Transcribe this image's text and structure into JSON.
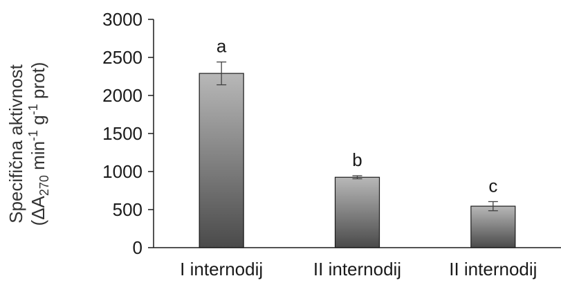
{
  "chart_data": {
    "type": "bar",
    "categories": [
      "I internodij",
      "II internodij",
      "II internodij"
    ],
    "values": [
      2290,
      925,
      545
    ],
    "errors": [
      150,
      20,
      60
    ],
    "data_labels": [
      "a",
      "b",
      "c"
    ],
    "title": "",
    "xlabel": "",
    "ylabel": {
      "line1": "Specifična aktivnost",
      "line2_open": "(ΔA",
      "line2_sub": "270",
      "line2_mid": " min",
      "line2_sup1": "-1",
      "line2_mid2": " g",
      "line2_sup2": "-1",
      "line2_close": " prot)"
    },
    "ylim": [
      0,
      3000
    ],
    "yticks": [
      "0",
      "500",
      "1000",
      "1500",
      "2000",
      "2500",
      "3000"
    ],
    "ytick_values": [
      0,
      500,
      1000,
      1500,
      2000,
      2500,
      3000
    ],
    "grid": false,
    "legend": "none",
    "colors": {
      "bar_light": "#b8b8b8",
      "bar_dark": "#4a4a4a",
      "bar_stroke": "#1a1a1a",
      "axis": "#1a1a1a",
      "error_bar": "#404040"
    }
  }
}
